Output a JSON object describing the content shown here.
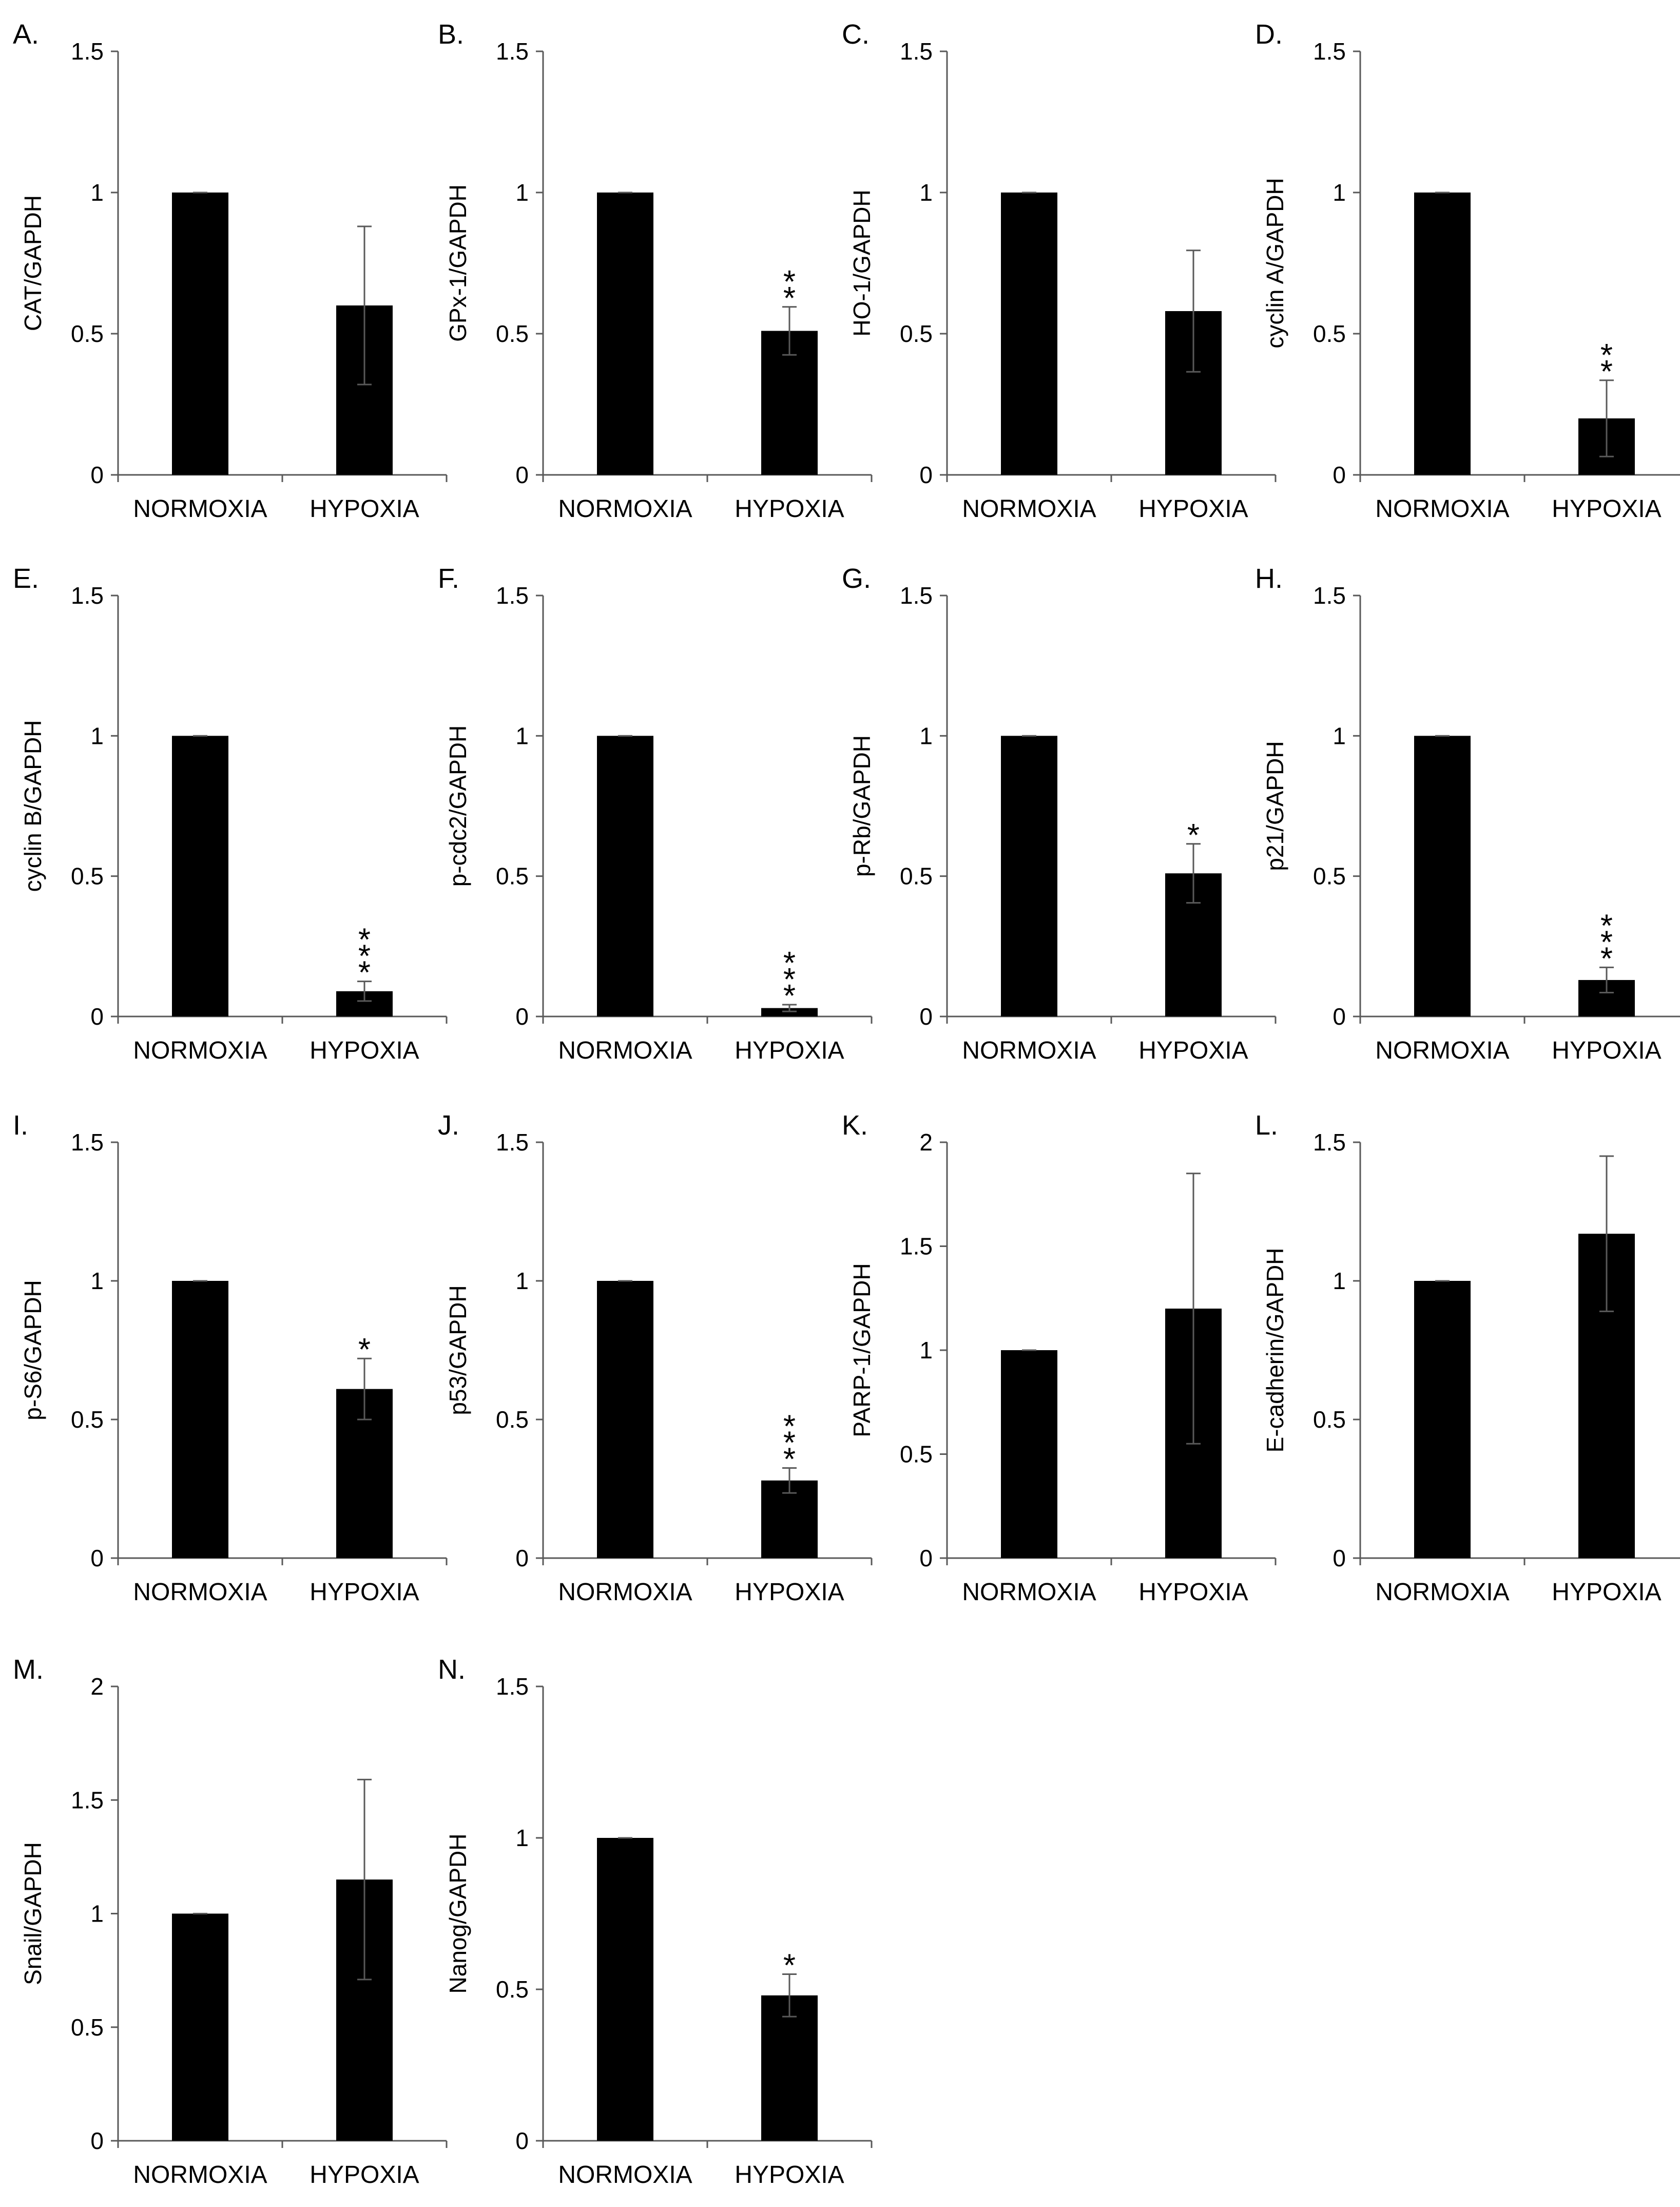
{
  "figure": {
    "background": "#ffffff",
    "bar_color": "#000000",
    "axis_color": "#595959",
    "error_bar_color": "#595959"
  },
  "chart_data": [
    {
      "id": "A",
      "panel_label": "A.",
      "type": "bar",
      "ylabel": "CAT/GAPDH",
      "categories": [
        "NORMOXIA",
        "HYPOXIA"
      ],
      "values": [
        1.0,
        0.6
      ],
      "errors": [
        0.0,
        0.28
      ],
      "significance": [
        "",
        ""
      ],
      "ylim": [
        0,
        1.5
      ],
      "yticks": [
        0,
        0.5,
        1,
        1.5
      ],
      "ytick_labels": [
        "0",
        "0.5",
        "1",
        "1.5"
      ]
    },
    {
      "id": "B",
      "panel_label": "B.",
      "type": "bar",
      "ylabel": "GPx-1/GAPDH",
      "categories": [
        "NORMOXIA",
        "HYPOXIA"
      ],
      "values": [
        1.0,
        0.51
      ],
      "errors": [
        0.0,
        0.085
      ],
      "significance": [
        "",
        "**"
      ],
      "ylim": [
        0,
        1.5
      ],
      "yticks": [
        0,
        0.5,
        1,
        1.5
      ],
      "ytick_labels": [
        "0",
        "0.5",
        "1",
        "1.5"
      ]
    },
    {
      "id": "C",
      "panel_label": "C.",
      "type": "bar",
      "ylabel": "HO-1/GAPDH",
      "categories": [
        "NORMOXIA",
        "HYPOXIA"
      ],
      "values": [
        1.0,
        0.58
      ],
      "errors": [
        0.0,
        0.215
      ],
      "significance": [
        "",
        ""
      ],
      "ylim": [
        0,
        1.5
      ],
      "yticks": [
        0,
        0.5,
        1,
        1.5
      ],
      "ytick_labels": [
        "0",
        "0.5",
        "1",
        "1.5"
      ]
    },
    {
      "id": "D",
      "panel_label": "D.",
      "type": "bar",
      "ylabel": "cyclin A/GAPDH",
      "categories": [
        "NORMOXIA",
        "HYPOXIA"
      ],
      "values": [
        1.0,
        0.2
      ],
      "errors": [
        0.0,
        0.135
      ],
      "significance": [
        "",
        "**"
      ],
      "ylim": [
        0,
        1.5
      ],
      "yticks": [
        0,
        0.5,
        1,
        1.5
      ],
      "ytick_labels": [
        "0",
        "0.5",
        "1",
        "1.5"
      ]
    },
    {
      "id": "E",
      "panel_label": "E.",
      "type": "bar",
      "ylabel": "cyclin B/GAPDH",
      "categories": [
        "NORMOXIA",
        "HYPOXIA"
      ],
      "values": [
        1.0,
        0.09
      ],
      "errors": [
        0.0,
        0.035
      ],
      "significance": [
        "",
        "***"
      ],
      "ylim": [
        0,
        1.5
      ],
      "yticks": [
        0,
        0.5,
        1,
        1.5
      ],
      "ytick_labels": [
        "0",
        "0.5",
        "1",
        "1.5"
      ]
    },
    {
      "id": "F",
      "panel_label": "F.",
      "type": "bar",
      "ylabel": "p-cdc2/GAPDH",
      "categories": [
        "NORMOXIA",
        "HYPOXIA"
      ],
      "values": [
        1.0,
        0.03
      ],
      "errors": [
        0.0,
        0.012
      ],
      "significance": [
        "",
        "***"
      ],
      "ylim": [
        0,
        1.5
      ],
      "yticks": [
        0,
        0.5,
        1,
        1.5
      ],
      "ytick_labels": [
        "0",
        "0.5",
        "1",
        "1.5"
      ]
    },
    {
      "id": "G",
      "panel_label": "G.",
      "type": "bar",
      "ylabel": "p-Rb/GAPDH",
      "categories": [
        "NORMOXIA",
        "HYPOXIA"
      ],
      "values": [
        1.0,
        0.51
      ],
      "errors": [
        0.0,
        0.105
      ],
      "significance": [
        "",
        "*"
      ],
      "ylim": [
        0,
        1.5
      ],
      "yticks": [
        0,
        0.5,
        1,
        1.5
      ],
      "ytick_labels": [
        "0",
        "0.5",
        "1",
        "1.5"
      ]
    },
    {
      "id": "H",
      "panel_label": "H.",
      "type": "bar",
      "ylabel": "p21/GAPDH",
      "categories": [
        "NORMOXIA",
        "HYPOXIA"
      ],
      "values": [
        1.0,
        0.13
      ],
      "errors": [
        0.0,
        0.045
      ],
      "significance": [
        "",
        "***"
      ],
      "ylim": [
        0,
        1.5
      ],
      "yticks": [
        0,
        0.5,
        1,
        1.5
      ],
      "ytick_labels": [
        "0",
        "0.5",
        "1",
        "1.5"
      ]
    },
    {
      "id": "I",
      "panel_label": "I.",
      "type": "bar",
      "ylabel": "p-S6/GAPDH",
      "categories": [
        "NORMOXIA",
        "HYPOXIA"
      ],
      "values": [
        1.0,
        0.61
      ],
      "errors": [
        0.0,
        0.11
      ],
      "significance": [
        "",
        "*"
      ],
      "ylim": [
        0,
        1.5
      ],
      "yticks": [
        0,
        0.5,
        1,
        1.5
      ],
      "ytick_labels": [
        "0",
        "0.5",
        "1",
        "1.5"
      ]
    },
    {
      "id": "J",
      "panel_label": "J.",
      "type": "bar",
      "ylabel": "p53/GAPDH",
      "categories": [
        "NORMOXIA",
        "HYPOXIA"
      ],
      "values": [
        1.0,
        0.28
      ],
      "errors": [
        0.0,
        0.045
      ],
      "significance": [
        "",
        "***"
      ],
      "ylim": [
        0,
        1.5
      ],
      "yticks": [
        0,
        0.5,
        1,
        1.5
      ],
      "ytick_labels": [
        "0",
        "0.5",
        "1",
        "1.5"
      ]
    },
    {
      "id": "K",
      "panel_label": "K.",
      "type": "bar",
      "ylabel": "PARP-1/GAPDH",
      "categories": [
        "NORMOXIA",
        "HYPOXIA"
      ],
      "values": [
        1.0,
        1.2
      ],
      "errors": [
        0.0,
        0.65
      ],
      "significance": [
        "",
        ""
      ],
      "ylim": [
        0,
        2
      ],
      "yticks": [
        0,
        0.5,
        1,
        1.5,
        2
      ],
      "ytick_labels": [
        "0",
        "0.5",
        "1",
        "1.5",
        "2"
      ]
    },
    {
      "id": "L",
      "panel_label": "L.",
      "type": "bar",
      "ylabel": "E-cadherin/GAPDH",
      "categories": [
        "NORMOXIA",
        "HYPOXIA"
      ],
      "values": [
        1.0,
        1.17
      ],
      "errors": [
        0.0,
        0.28
      ],
      "significance": [
        "",
        ""
      ],
      "ylim": [
        0,
        1.5
      ],
      "yticks": [
        0,
        0.5,
        1,
        1.5
      ],
      "ytick_labels": [
        "0",
        "0.5",
        "1",
        "1.5"
      ]
    },
    {
      "id": "M",
      "panel_label": "M.",
      "type": "bar",
      "ylabel": "Snail/GAPDH",
      "categories": [
        "NORMOXIA",
        "HYPOXIA"
      ],
      "values": [
        1.0,
        1.15
      ],
      "errors": [
        0.0,
        0.44
      ],
      "significance": [
        "",
        ""
      ],
      "ylim": [
        0,
        2
      ],
      "yticks": [
        0,
        0.5,
        1,
        1.5,
        2
      ],
      "ytick_labels": [
        "0",
        "0.5",
        "1",
        "1.5",
        "2"
      ]
    },
    {
      "id": "N",
      "panel_label": "N.",
      "type": "bar",
      "ylabel": "Nanog/GAPDH",
      "categories": [
        "NORMOXIA",
        "HYPOXIA"
      ],
      "values": [
        1.0,
        0.48
      ],
      "errors": [
        0.0,
        0.07
      ],
      "significance": [
        "",
        "*"
      ],
      "ylim": [
        0,
        1.5
      ],
      "yticks": [
        0,
        0.5,
        1,
        1.5
      ],
      "ytick_labels": [
        "0",
        "0.5",
        "1",
        "1.5"
      ]
    }
  ]
}
